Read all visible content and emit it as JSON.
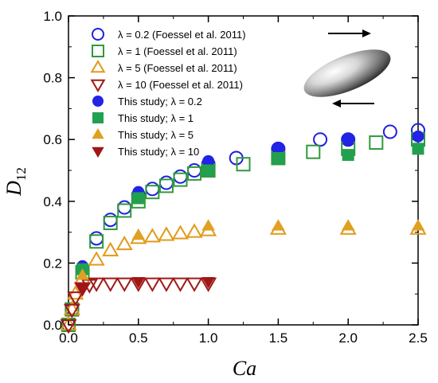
{
  "chart_data": {
    "type": "scatter",
    "xlabel": "Ca",
    "ylabel_main": "D",
    "ylabel_sub": "12",
    "xlim": [
      0,
      2.5
    ],
    "ylim": [
      0,
      1.0
    ],
    "xticks": [
      "0.0",
      "0.5",
      "1.0",
      "1.5",
      "2.0",
      "2.5"
    ],
    "yticks": [
      "0.0",
      "0.2",
      "0.4",
      "0.6",
      "0.8",
      "1.0"
    ],
    "grid": false,
    "legend_position": "top-left",
    "series": [
      {
        "name": "λ = 0.2 (Foessel et al. 2011)",
        "marker": "circle-open",
        "color": "#1f1fe0",
        "points": [
          [
            0.0,
            0.0
          ],
          [
            0.025,
            0.05
          ],
          [
            0.1,
            0.18
          ],
          [
            0.2,
            0.28
          ],
          [
            0.3,
            0.34
          ],
          [
            0.4,
            0.38
          ],
          [
            0.5,
            0.42
          ],
          [
            0.6,
            0.44
          ],
          [
            0.7,
            0.46
          ],
          [
            0.8,
            0.48
          ],
          [
            0.9,
            0.5
          ],
          [
            1.0,
            0.52
          ],
          [
            1.2,
            0.54
          ],
          [
            1.5,
            0.57
          ],
          [
            1.8,
            0.6
          ],
          [
            2.0,
            0.6
          ],
          [
            2.3,
            0.625
          ],
          [
            2.5,
            0.63
          ]
        ]
      },
      {
        "name": "λ = 1 (Foessel et al. 2011)",
        "marker": "square-open",
        "color": "#2f9a3a",
        "points": [
          [
            0.0,
            0.0
          ],
          [
            0.025,
            0.05
          ],
          [
            0.1,
            0.17
          ],
          [
            0.2,
            0.27
          ],
          [
            0.3,
            0.33
          ],
          [
            0.4,
            0.37
          ],
          [
            0.5,
            0.4
          ],
          [
            0.6,
            0.43
          ],
          [
            0.7,
            0.45
          ],
          [
            0.8,
            0.47
          ],
          [
            0.9,
            0.49
          ],
          [
            1.0,
            0.5
          ],
          [
            1.25,
            0.52
          ],
          [
            1.5,
            0.54
          ],
          [
            1.75,
            0.56
          ],
          [
            2.0,
            0.57
          ],
          [
            2.2,
            0.59
          ],
          [
            2.5,
            0.6
          ]
        ]
      },
      {
        "name": "λ = 5 (Foessel et al. 2011)",
        "marker": "triangle-up-open",
        "color": "#e09a1a",
        "points": [
          [
            0.0,
            0.0
          ],
          [
            0.025,
            0.05
          ],
          [
            0.05,
            0.1
          ],
          [
            0.1,
            0.15
          ],
          [
            0.2,
            0.21
          ],
          [
            0.3,
            0.24
          ],
          [
            0.4,
            0.26
          ],
          [
            0.5,
            0.28
          ],
          [
            0.6,
            0.285
          ],
          [
            0.7,
            0.29
          ],
          [
            0.8,
            0.295
          ],
          [
            0.9,
            0.3
          ],
          [
            1.0,
            0.305
          ],
          [
            1.5,
            0.31
          ],
          [
            2.0,
            0.31
          ],
          [
            2.5,
            0.31
          ]
        ]
      },
      {
        "name": "λ = 10 (Foessel et al. 2011)",
        "marker": "triangle-down-open",
        "color": "#a01818",
        "points": [
          [
            0.0,
            0.0
          ],
          [
            0.025,
            0.05
          ],
          [
            0.05,
            0.09
          ],
          [
            0.1,
            0.12
          ],
          [
            0.15,
            0.13
          ],
          [
            0.2,
            0.135
          ],
          [
            0.3,
            0.135
          ],
          [
            0.4,
            0.135
          ],
          [
            0.5,
            0.135
          ],
          [
            0.6,
            0.135
          ],
          [
            0.7,
            0.135
          ],
          [
            0.8,
            0.135
          ],
          [
            0.9,
            0.135
          ],
          [
            1.0,
            0.135
          ]
        ]
      },
      {
        "name": "This study; λ = 0.2",
        "marker": "circle-filled",
        "color": "#2323e6",
        "points": [
          [
            0.1,
            0.19
          ],
          [
            0.5,
            0.43
          ],
          [
            1.0,
            0.53
          ],
          [
            1.5,
            0.57
          ],
          [
            2.0,
            0.6
          ],
          [
            2.5,
            0.61
          ]
        ]
      },
      {
        "name": "This study; λ = 1",
        "marker": "square-filled",
        "color": "#23a04f",
        "points": [
          [
            0.1,
            0.18
          ],
          [
            0.5,
            0.41
          ],
          [
            1.0,
            0.5
          ],
          [
            1.5,
            0.54
          ],
          [
            2.0,
            0.55
          ],
          [
            2.5,
            0.57
          ]
        ]
      },
      {
        "name": "This study; λ = 5",
        "marker": "triangle-up-filled",
        "color": "#e0a020",
        "points": [
          [
            0.1,
            0.16
          ],
          [
            0.5,
            0.29
          ],
          [
            1.0,
            0.32
          ],
          [
            1.5,
            0.32
          ],
          [
            2.0,
            0.32
          ],
          [
            2.5,
            0.32
          ]
        ]
      },
      {
        "name": "This study; λ = 10",
        "marker": "triangle-down-filled",
        "color": "#a01616",
        "points": [
          [
            0.1,
            0.12
          ],
          [
            0.5,
            0.14
          ],
          [
            1.0,
            0.14
          ]
        ]
      }
    ]
  }
}
